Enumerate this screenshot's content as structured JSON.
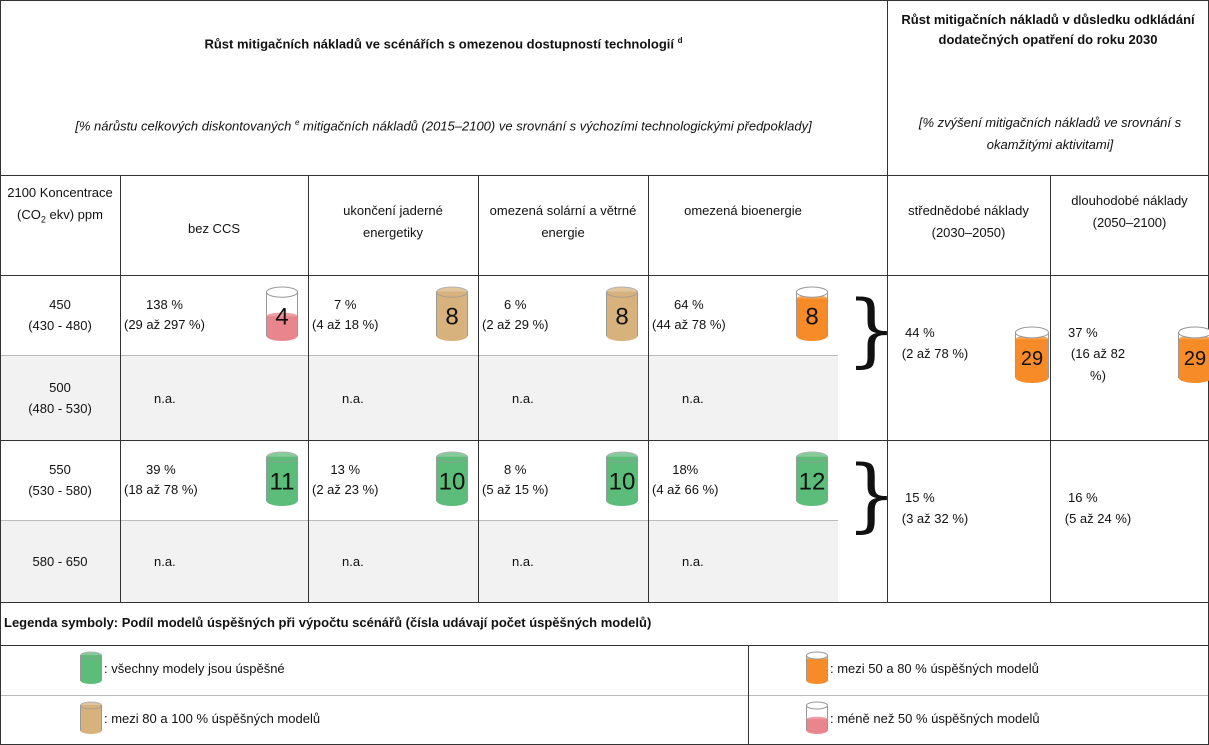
{
  "header": {
    "left": {
      "title": "Růst mitigačních nákladů ve scénářích s omezenou dostupností technologií",
      "title_sup": "d",
      "subtitle_parts": [
        "[% nárůstu celkových diskontovaných ",
        "e",
        " mitigačních nákladů (2015–2100) ve srovnání s výchozími technologickými předpoklady]"
      ]
    },
    "right": {
      "title": "Růst mitigačních nákladů v důsledku odkládání dodatečných opatření do roku 2030",
      "subtitle": "[% zvýšení mitigačních nákladů ve srovnání s okamžitými aktivitami]"
    }
  },
  "columns": {
    "concentration": [
      "2100 Koncentrace (CO",
      "2",
      " ekv) ppm"
    ],
    "technologies": [
      "bez CCS",
      "ukončení jaderné energetiky",
      "omezená solární a větrné energie",
      "omezená bioenergie"
    ],
    "delay": [
      "střednědobé náklady (2030–2050)",
      "dlouhodobé náklady (2050–2100)"
    ]
  },
  "rows": [
    {
      "concentration": "450",
      "range": "(430 - 480)",
      "cells": [
        {
          "value": "138 %",
          "range": "(29 až 297 %)",
          "icon": {
            "count": 4,
            "color": "#e9858d",
            "level": 0.45
          }
        },
        {
          "value": "7 %",
          "range": "(4 až 18 %)",
          "icon": {
            "count": 8,
            "color": "#d7b27c",
            "level": 1
          }
        },
        {
          "value": "6 %",
          "range": "(2 až 29 %)",
          "icon": {
            "count": 8,
            "color": "#d7b27c",
            "level": 1
          }
        },
        {
          "value": "64 %",
          "range": "(44 až 78 %)",
          "icon": {
            "count": 8,
            "color": "#f68b27",
            "level": 0.85
          }
        }
      ]
    },
    {
      "concentration": "500",
      "range": "(480 - 530)",
      "cells": [
        "n.a.",
        "n.a.",
        "n.a.",
        "n.a."
      ]
    },
    {
      "concentration": "550",
      "range": "(530 - 580)",
      "cells": [
        {
          "value": "39 %",
          "range": "(18 až 78 %)",
          "icon": {
            "count": 11,
            "color": "#5cbd7a",
            "level": 1
          }
        },
        {
          "value": "13 %",
          "range": "(2 až 23 %)",
          "icon": {
            "count": 10,
            "color": "#5cbd7a",
            "level": 1
          }
        },
        {
          "value": "8 %",
          "range": "(5 až 15 %)",
          "icon": {
            "count": 10,
            "color": "#5cbd7a",
            "level": 1
          }
        },
        {
          "value": "18%",
          "range": "(4 až 66 %)",
          "icon": {
            "count": 12,
            "color": "#5cbd7a",
            "level": 1
          }
        }
      ]
    },
    {
      "concentration": "580 - 650",
      "cells": [
        "n.a.",
        "n.a.",
        "n.a.",
        "n.a."
      ]
    }
  ],
  "delay": [
    {
      "cells": [
        {
          "value": "44 %",
          "range": "(2 až 78 %)",
          "icon": {
            "count": 29,
            "color": "#f68b27",
            "level": 0.85
          }
        },
        {
          "value": "37 %",
          "range": "(16 až 82 %)",
          "icon": {
            "count": 29,
            "color": "#f68b27",
            "level": 0.85
          }
        }
      ]
    },
    {
      "cells": [
        {
          "value": "15 %",
          "range": "(3 až 32 %)"
        },
        {
          "value": "16 %",
          "range": "(5 až 24 %)"
        }
      ]
    }
  ],
  "legend": {
    "title": "Legenda symboly:  Podíl modelů úspěšných při výpočtu scénářů (čísla udávají počet úspěšných modelů)",
    "items": [
      {
        "text": ": všechny modely jsou úspěšné",
        "color": "#5cbd7a",
        "level": 1
      },
      {
        "text": ": mezi 80 a 100 % úspěšných modelů",
        "color": "#d7b27c",
        "level": 1
      },
      {
        "text": ": mezi 50 a 80 % úspěšných modelů",
        "color": "#f68b27",
        "level": 0.85
      },
      {
        "text": ": méně než 50 % úspěšných modelů",
        "color": "#e9858d",
        "level": 0.45
      }
    ]
  }
}
